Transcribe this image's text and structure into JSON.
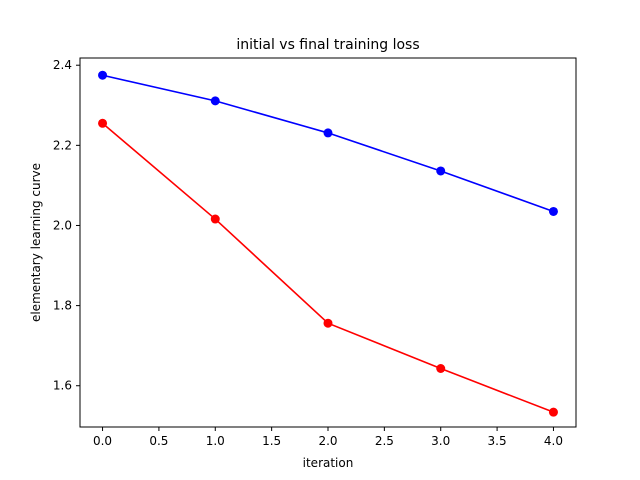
{
  "chart_data": {
    "type": "line",
    "title": "initial vs final training loss",
    "xlabel": "iteration",
    "ylabel": "elementary learning curve",
    "x": [
      0,
      1,
      2,
      3,
      4
    ],
    "xlim": [
      -0.2,
      4.2
    ],
    "ylim": [
      1.497,
      2.418
    ],
    "xticks": [
      0.0,
      0.5,
      1.0,
      1.5,
      2.0,
      2.5,
      3.0,
      3.5,
      4.0
    ],
    "xtick_labels": [
      "0.0",
      "0.5",
      "1.0",
      "1.5",
      "2.0",
      "2.5",
      "3.0",
      "3.5",
      "4.0"
    ],
    "yticks": [
      1.6,
      1.8,
      2.0,
      2.2,
      2.4
    ],
    "ytick_labels": [
      "1.6",
      "1.8",
      "2.0",
      "2.2",
      "2.4"
    ],
    "grid": false,
    "legend": "none",
    "series": [
      {
        "color": "#0000ff",
        "marker": "circle",
        "values": [
          2.375,
          2.311,
          2.231,
          2.136,
          2.035
        ]
      },
      {
        "color": "#ff0000",
        "marker": "circle",
        "values": [
          2.255,
          2.016,
          1.756,
          1.643,
          1.534
        ]
      }
    ]
  }
}
